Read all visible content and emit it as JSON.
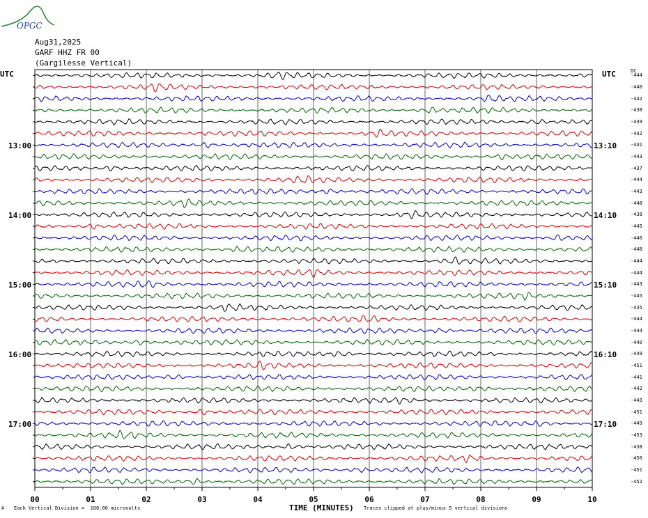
{
  "logo": {
    "text": "OPGC",
    "color": "#2a8a3a",
    "text_color": "#2244aa"
  },
  "header": {
    "date": "Aug31,2025",
    "station": "GARF HHZ FR 00",
    "location": "(Gargilesse Vertical)"
  },
  "left_axis_title": "UTC",
  "right_axis_title": "UTC",
  "dc_title": "DC",
  "left_hour_labels": [
    "13:00",
    "14:00",
    "15:00",
    "16:00",
    "17:00"
  ],
  "right_hour_labels": [
    "13:10",
    "14:10",
    "15:10",
    "16:10",
    "17:10"
  ],
  "footer": {
    "scale_note": "Each Vertical Division =  100.00 microvolts",
    "clip_note": "Traces clipped at plus/minus 5 vertical divisions",
    "corner_mark": "A"
  },
  "chart_data": {
    "type": "line",
    "title": "GARF HHZ FR 00 (Gargilesse Vertical)",
    "xlabel": "TIME (MINUTES)",
    "ylabel": "UTC",
    "x_ticks": [
      "00",
      "01",
      "02",
      "03",
      "04",
      "05",
      "06",
      "07",
      "08",
      "09",
      "10"
    ],
    "xlim": [
      0,
      10
    ],
    "grid": true,
    "trace_colors": [
      "#000000",
      "#dd0000",
      "#0000cc",
      "#006600"
    ],
    "traces": [
      {
        "dc": -444,
        "burst": 4.4
      },
      {
        "dc": -440,
        "burst": 2.2
      },
      {
        "dc": -442,
        "burst": 8.2
      },
      {
        "dc": -438,
        "burst": 7.1
      },
      {
        "dc": -439,
        "burst": 9.0
      },
      {
        "dc": -442,
        "burst": 6.2
      },
      {
        "dc": -441,
        "burst": 3.1
      },
      {
        "dc": -443,
        "burst": 8.4
      },
      {
        "dc": -437,
        "burst": 1.4
      },
      {
        "dc": -444,
        "burst": 4.8
      },
      {
        "dc": -443,
        "burst": 5.3
      },
      {
        "dc": -448,
        "burst": 2.7
      },
      {
        "dc": -438,
        "burst": 6.8
      },
      {
        "dc": -445,
        "burst": 1.0
      },
      {
        "dc": -446,
        "burst": 9.4
      },
      {
        "dc": -448,
        "burst": 3.7
      },
      {
        "dc": -444,
        "burst": 7.5
      },
      {
        "dc": -444,
        "burst": 5.0
      },
      {
        "dc": -443,
        "burst": 2.0
      },
      {
        "dc": -445,
        "burst": 8.8
      },
      {
        "dc": -435,
        "burst": 3.5
      },
      {
        "dc": -444,
        "burst": 6.0
      },
      {
        "dc": -444,
        "burst": 7.3
      },
      {
        "dc": -440,
        "burst": 1.9
      },
      {
        "dc": -449,
        "burst": 5.5
      },
      {
        "dc": -451,
        "burst": 4.1
      },
      {
        "dc": -441,
        "burst": 2.5
      },
      {
        "dc": -442,
        "burst": 8.0
      },
      {
        "dc": -443,
        "burst": 6.6
      },
      {
        "dc": -451,
        "burst": 3.0
      },
      {
        "dc": -449,
        "burst": 9.1
      },
      {
        "dc": -453,
        "burst": 1.6
      },
      {
        "dc": -438,
        "burst": 4.6
      },
      {
        "dc": -450,
        "burst": 7.8
      },
      {
        "dc": -451,
        "burst": 5.8
      },
      {
        "dc": -452,
        "burst": 2.9
      }
    ]
  }
}
